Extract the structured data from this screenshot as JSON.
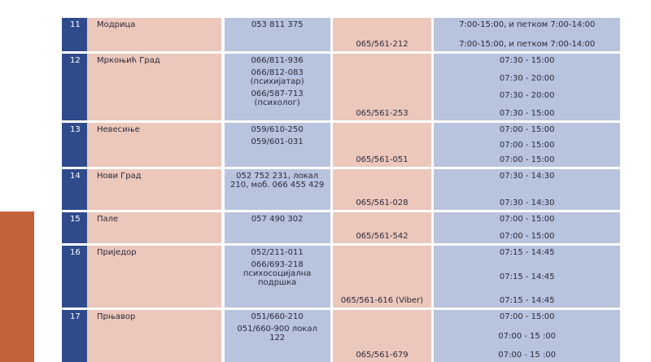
{
  "table": {
    "rows": [
      {
        "number": "11",
        "name": "Модрица",
        "phones": [
          "053 811 375"
        ],
        "viber": "065/561-212",
        "hours": [
          "7:00-15:00, и петком 7:00-14:00",
          "7:00-15:00, и петком 7:00-14:00"
        ]
      },
      {
        "number": "12",
        "name": "Мркоњић Град",
        "phones": [
          "066/811-936",
          "066/812-083\n(психијатар)",
          "066/587-713\n(психолог)"
        ],
        "viber": "065/561-253",
        "hours": [
          "07:30 - 15:00",
          "07:30 - 20:00",
          "07:30 - 20:00",
          "07:30 - 15:00"
        ]
      },
      {
        "number": "13",
        "name": "Невесиње",
        "phones": [
          "059/610-250",
          "059/601-031"
        ],
        "viber": "065/561-051",
        "hours": [
          "07:00 - 15:00",
          "07:00 - 15:00",
          "07:00 - 15:00"
        ]
      },
      {
        "number": "14",
        "name": "Нови Град",
        "phones": [
          "052 752 231, локал\n210, моб. 066 455 429"
        ],
        "viber": "065/561-028",
        "hours": [
          "07:30 - 14:30",
          "07:30 - 14:30"
        ]
      },
      {
        "number": "15",
        "name": "Пале",
        "phones": [
          "057 490 302"
        ],
        "viber": "065/561-542",
        "hours": [
          "07:00 - 15:00",
          "07:00 - 15:00"
        ]
      },
      {
        "number": "16",
        "name": "Приједор",
        "phones": [
          "052/211-011",
          "066/693-218\nпсихосоцијална\nподршка"
        ],
        "viber": "065/561-616 (Viber)",
        "hours": [
          "07:15 - 14:45",
          "07:15 - 14:45",
          "07:15 - 14:45"
        ]
      },
      {
        "number": "17",
        "name": "Прњавор",
        "phones": [
          "051/660-210",
          "051/660-900 локал\n122"
        ],
        "viber": "065/561-679",
        "hours": [
          "07:00 - 15:00",
          "07:00 - 15 :00",
          "07:00 - 15 :00"
        ]
      }
    ]
  }
}
